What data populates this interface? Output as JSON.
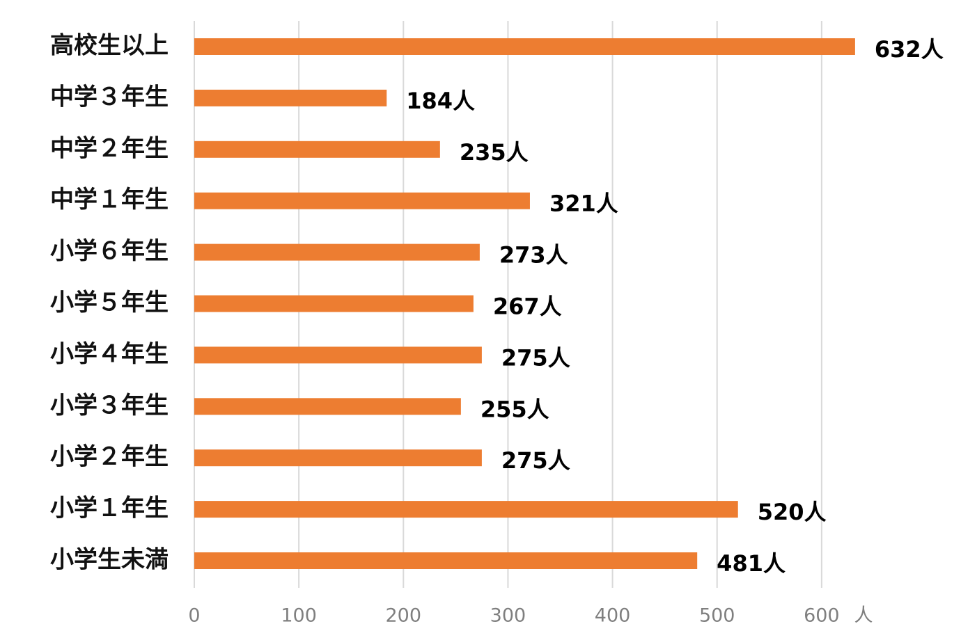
{
  "chart_data": {
    "type": "hbar",
    "categories": [
      "高校生以上",
      "中学３年生",
      "中学２年生",
      "中学１年生",
      "小学６年生",
      "小学５年生",
      "小学４年生",
      "小学３年生",
      "小学２年生",
      "小学１年生",
      "小学生未満"
    ],
    "values": [
      632,
      184,
      235,
      321,
      273,
      267,
      275,
      255,
      275,
      520,
      481
    ],
    "value_labels": [
      "632人",
      "184人",
      "235人",
      "321人",
      "273人",
      "267人",
      "275人",
      "255人",
      "275人",
      "520人",
      "481人"
    ],
    "color": "#ed7d31",
    "x_label": "人",
    "xlim": [
      0,
      700
    ],
    "xticks": [
      0,
      100,
      200,
      300,
      400,
      500,
      600
    ],
    "grid": true
  }
}
